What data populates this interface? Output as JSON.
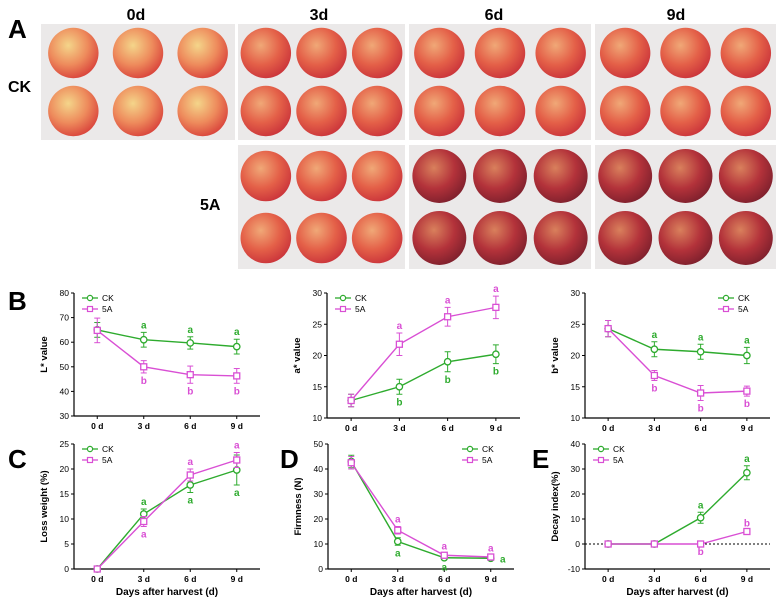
{
  "panels": {
    "A": "A",
    "B": "B",
    "C": "C",
    "D": "D",
    "E": "E"
  },
  "photo_grid": {
    "columns": [
      "0d",
      "3d",
      "6d",
      "9d"
    ],
    "rows": [
      "CK",
      "5A"
    ]
  },
  "colors": {
    "CK": "#2eab2e",
    "5A": "#d94fd4"
  },
  "chart_data": [
    {
      "id": "L",
      "type": "line",
      "categories": [
        "0 d",
        "3 d",
        "6 d",
        "9 d"
      ],
      "ylabel": "L* value",
      "xlabel": "",
      "ylim": [
        30,
        80
      ],
      "yticks": [
        30,
        40,
        50,
        60,
        70,
        80
      ],
      "legend": "top-left",
      "series": [
        {
          "name": "CK",
          "values": [
            65,
            61,
            59.7,
            58.2
          ],
          "err": [
            3,
            3,
            2.5,
            3
          ],
          "letters": [
            "",
            "a",
            "a",
            "a"
          ],
          "letter_pos": [
            "",
            "above",
            "above",
            "above"
          ]
        },
        {
          "name": "5A",
          "values": [
            64.8,
            50,
            46.8,
            46.3
          ],
          "err": [
            5,
            2.5,
            3.5,
            3
          ],
          "letters": [
            "",
            "b",
            "b",
            "b"
          ],
          "letter_pos": [
            "",
            "below",
            "below",
            "below"
          ]
        }
      ]
    },
    {
      "id": "a",
      "type": "line",
      "categories": [
        "0 d",
        "3 d",
        "6 d",
        "9 d"
      ],
      "ylabel": "a* value",
      "xlabel": "",
      "ylim": [
        10,
        30
      ],
      "yticks": [
        10,
        15,
        20,
        25,
        30
      ],
      "legend": "top-left",
      "series": [
        {
          "name": "CK",
          "values": [
            12.8,
            15,
            19,
            20.2
          ],
          "err": [
            1,
            1.2,
            1.6,
            1.5
          ],
          "letters": [
            "",
            "b",
            "b",
            "b"
          ],
          "letter_pos": [
            "",
            "below",
            "below",
            "below"
          ]
        },
        {
          "name": "5A",
          "values": [
            12.8,
            21.8,
            26.2,
            27.7
          ],
          "err": [
            1,
            1.8,
            1.5,
            1.8
          ],
          "letters": [
            "",
            "a",
            "a",
            "a"
          ],
          "letter_pos": [
            "",
            "above",
            "above",
            "above"
          ]
        }
      ]
    },
    {
      "id": "b",
      "type": "line",
      "categories": [
        "0 d",
        "3 d",
        "6 d",
        "9 d"
      ],
      "ylabel": "b* value",
      "xlabel": "",
      "ylim": [
        10,
        30
      ],
      "yticks": [
        10,
        15,
        20,
        25,
        30
      ],
      "legend": "top-right",
      "series": [
        {
          "name": "CK",
          "values": [
            24.3,
            21,
            20.6,
            20
          ],
          "err": [
            1.3,
            1.2,
            1.2,
            1.3
          ],
          "letters": [
            "",
            "a",
            "a",
            "a"
          ],
          "letter_pos": [
            "",
            "above",
            "above",
            "above"
          ]
        },
        {
          "name": "5A",
          "values": [
            24.3,
            16.8,
            14,
            14.3
          ],
          "err": [
            1.3,
            0.8,
            1.2,
            0.8
          ],
          "letters": [
            "",
            "b",
            "b",
            "b"
          ],
          "letter_pos": [
            "",
            "below",
            "below",
            "below"
          ]
        }
      ]
    },
    {
      "id": "loss",
      "type": "line",
      "categories": [
        "0 d",
        "3 d",
        "6 d",
        "9 d"
      ],
      "ylabel": "Loss weight (%)",
      "xlabel": "Days after harvest (d)",
      "ylim": [
        0,
        25
      ],
      "yticks": [
        0,
        5,
        10,
        15,
        20,
        25
      ],
      "legend": "top-left",
      "series": [
        {
          "name": "CK",
          "values": [
            0,
            11,
            16.8,
            19.8
          ],
          "err": [
            0,
            1,
            1.5,
            3
          ],
          "letters": [
            "",
            "a",
            "a",
            "a"
          ],
          "letter_pos": [
            "",
            "above",
            "below",
            "below"
          ]
        },
        {
          "name": "5A",
          "values": [
            0,
            9.5,
            18.8,
            21.8
          ],
          "err": [
            0,
            1,
            1.2,
            1.5
          ],
          "letters": [
            "",
            "a",
            "a",
            "a"
          ],
          "letter_pos": [
            "",
            "below",
            "above",
            "above"
          ]
        }
      ]
    },
    {
      "id": "firm",
      "type": "line",
      "categories": [
        "0 d",
        "3 d",
        "6 d",
        "9 d"
      ],
      "ylabel": "Firmness (N)",
      "xlabel": "Days after harvest (d)",
      "ylim": [
        0,
        50
      ],
      "yticks": [
        0,
        10,
        20,
        30,
        40,
        50
      ],
      "legend": "top-right",
      "series": [
        {
          "name": "CK",
          "values": [
            43,
            11,
            4.5,
            4.3
          ],
          "err": [
            2.5,
            1.5,
            0.6,
            0.6
          ],
          "letters": [
            "",
            "a",
            "a",
            "a"
          ],
          "letter_pos": [
            "",
            "below",
            "below",
            "right"
          ]
        },
        {
          "name": "5A",
          "values": [
            42.5,
            15.5,
            5.5,
            4.8
          ],
          "err": [
            2.5,
            1.5,
            0.7,
            0.6
          ],
          "letters": [
            "",
            "a",
            "a",
            "a"
          ],
          "letter_pos": [
            "",
            "above",
            "above",
            "above"
          ]
        }
      ]
    },
    {
      "id": "decay",
      "type": "line",
      "categories": [
        "0 d",
        "3 d",
        "6 d",
        "9 d"
      ],
      "ylabel": "Decay index(%)",
      "xlabel": "Days after harvest (d)",
      "ylim": [
        -10,
        40
      ],
      "yticks": [
        -10,
        0,
        10,
        20,
        30,
        40
      ],
      "legend": "top-left",
      "series": [
        {
          "name": "CK",
          "values": [
            0,
            0,
            10.5,
            28.5
          ],
          "err": [
            0,
            0,
            2.2,
            2.8
          ],
          "letters": [
            "",
            "",
            "a",
            "a"
          ],
          "letter_pos": [
            "",
            "",
            "above",
            "above"
          ]
        },
        {
          "name": "5A",
          "values": [
            0,
            0,
            0,
            5
          ],
          "err": [
            0,
            0,
            0,
            0.5
          ],
          "letters": [
            "",
            "",
            "b",
            "b"
          ],
          "letter_pos": [
            "",
            "",
            "below",
            "above"
          ]
        }
      ]
    }
  ]
}
